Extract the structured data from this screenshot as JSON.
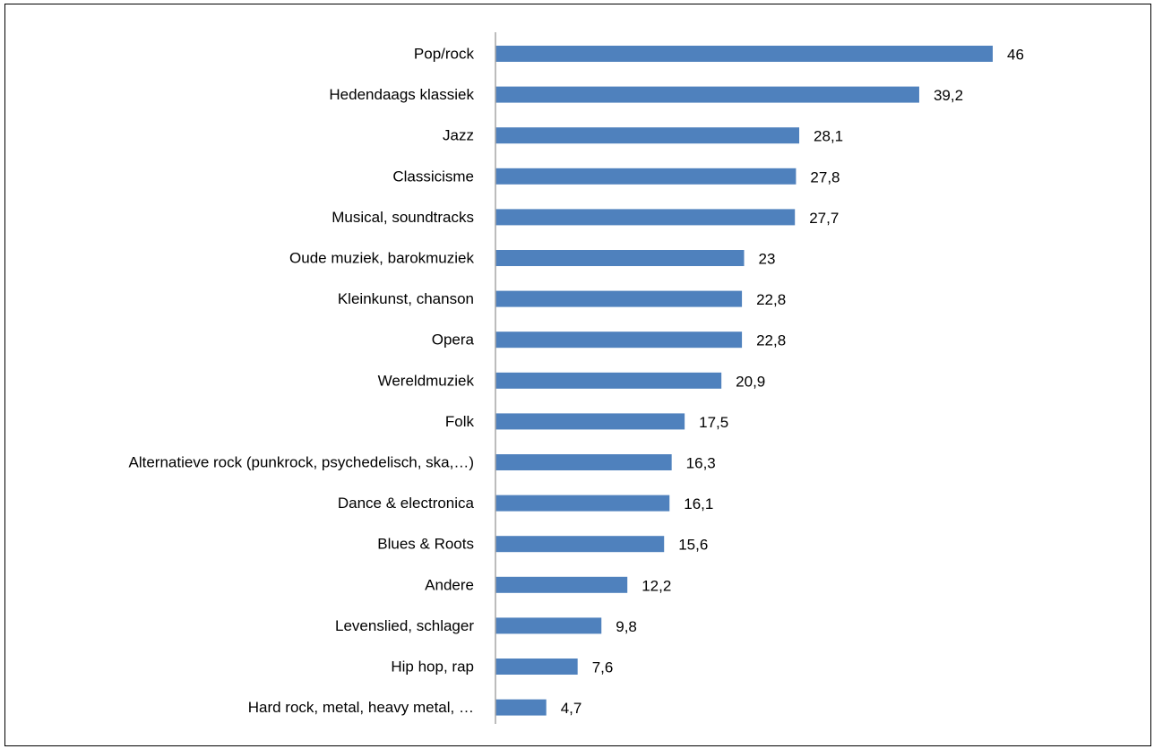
{
  "chart_data": {
    "type": "bar",
    "orientation": "horizontal",
    "title": "",
    "xlabel": "",
    "ylabel": "",
    "categories": [
      "Pop/rock",
      "Hedendaags klassiek",
      "Jazz",
      "Classicisme",
      "Musical, soundtracks",
      "Oude muziek, barokmuziek",
      "Kleinkunst, chanson",
      "Opera",
      "Wereldmuziek",
      "Folk",
      "Alternatieve rock (punkrock, psychedelisch, ska,…)",
      "Dance & electronica",
      "Blues & Roots",
      "Andere",
      "Levenslied, schlager",
      "Hip hop, rap",
      "Hard rock, metal, heavy metal, …"
    ],
    "values": [
      46,
      39.2,
      28.1,
      27.8,
      27.7,
      23,
      22.8,
      22.8,
      20.9,
      17.5,
      16.3,
      16.1,
      15.6,
      12.2,
      9.8,
      7.6,
      4.7
    ],
    "value_labels": [
      "46",
      "39,2",
      "28,1",
      "27,8",
      "27,7",
      "23",
      "22,8",
      "22,8",
      "20,9",
      "17,5",
      "16,3",
      "16,1",
      "15,6",
      "12,2",
      "9,8",
      "7,6",
      "4,7"
    ],
    "xlim": [
      0,
      50
    ],
    "grid": false,
    "legend": "none",
    "bar_color": "#4f81bd",
    "axis_color": "#a6a6a6"
  }
}
